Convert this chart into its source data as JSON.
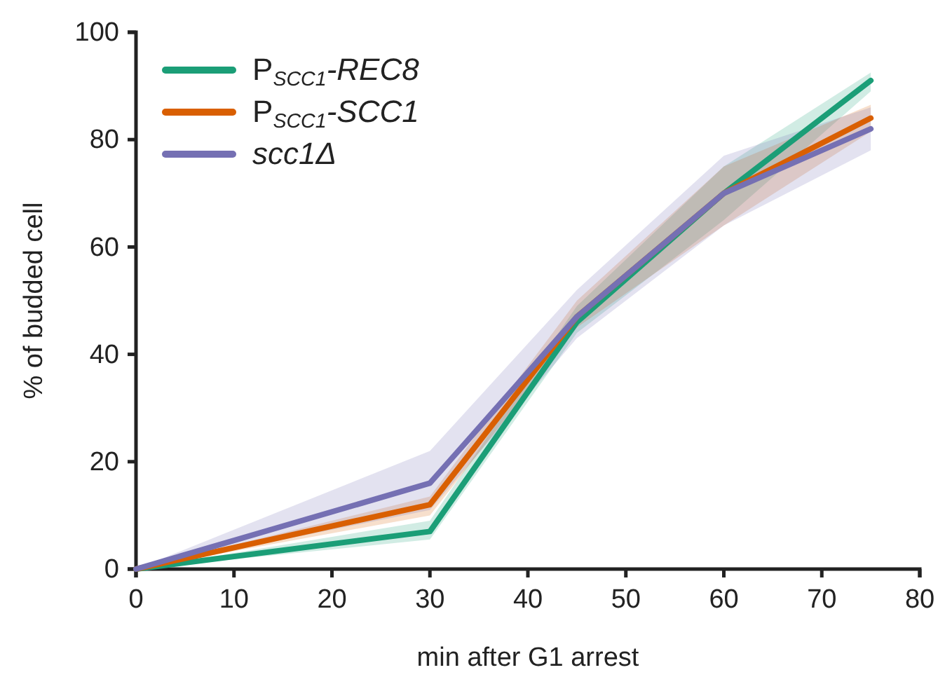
{
  "chart_data": {
    "type": "line",
    "xlabel": "min after G1 arrest",
    "ylabel": "% of budded cell",
    "x": [
      0,
      30,
      45,
      60,
      75
    ],
    "xlim": [
      0,
      80
    ],
    "xticks": [
      0,
      10,
      20,
      30,
      40,
      50,
      60,
      70,
      80
    ],
    "ylim": [
      0,
      100
    ],
    "yticks": [
      0,
      20,
      40,
      60,
      80,
      100
    ],
    "grid": false,
    "legend": "top left",
    "marker": "none",
    "line_style": "solid",
    "series": [
      {
        "name": "P$_{SCC1}$-REC8",
        "color": "#1b9e77",
        "values": [
          0,
          7,
          46,
          70,
          91
        ],
        "lower": [
          0,
          5.5,
          44,
          65,
          89
        ],
        "upper": [
          0,
          9,
          49,
          75,
          92.5
        ]
      },
      {
        "name": "P$_{SCC1}$-SCC1",
        "color": "#d95f02",
        "values": [
          0,
          12,
          47,
          70,
          84
        ],
        "lower": [
          0,
          10,
          45,
          64,
          81.5
        ],
        "upper": [
          0,
          13.5,
          50,
          75,
          86.5
        ]
      },
      {
        "name": "scc1Δ",
        "color": "#7570b3",
        "values": [
          0,
          16,
          47,
          70,
          82
        ],
        "lower": [
          0,
          11,
          43,
          64,
          78
        ],
        "upper": [
          0,
          22,
          52,
          77,
          86
        ]
      }
    ]
  }
}
